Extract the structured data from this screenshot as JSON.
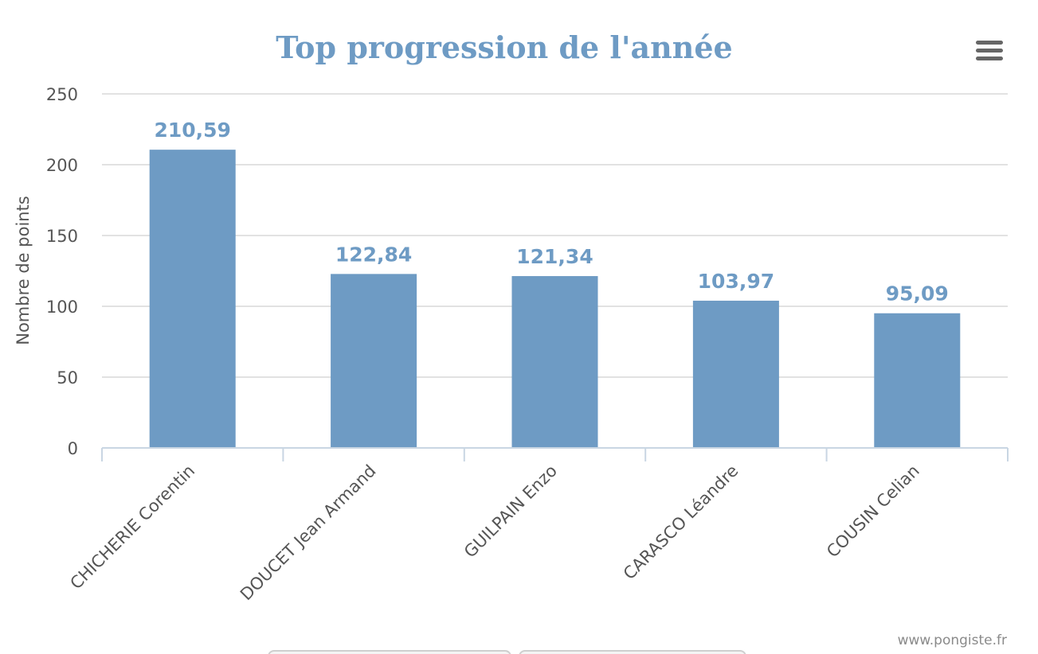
{
  "chart": {
    "title": "Top progression de l'année",
    "credits": "www.pongiste.fr",
    "menu_icon": "hamburger-menu-icon",
    "bar_color": "#6e9bc4",
    "title_color": "#6e9bc4"
  },
  "chart_data": {
    "type": "bar",
    "title": "Top progression de l'année",
    "xlabel": "",
    "ylabel": "Nombre de points",
    "categories": [
      "CHICHERIE Corentin",
      "DOUCET Jean Armand",
      "GUILPAIN Enzo",
      "CARASCO Léandre",
      "COUSIN Celian"
    ],
    "values": [
      210.59,
      122.84,
      121.34,
      103.97,
      95.09
    ],
    "value_labels": [
      "210,59",
      "122,84",
      "121,34",
      "103,97",
      "95,09"
    ],
    "ylim": [
      0,
      250
    ],
    "yticks": [
      0,
      50,
      100,
      150,
      200,
      250
    ],
    "grid": true,
    "legend": "none"
  }
}
